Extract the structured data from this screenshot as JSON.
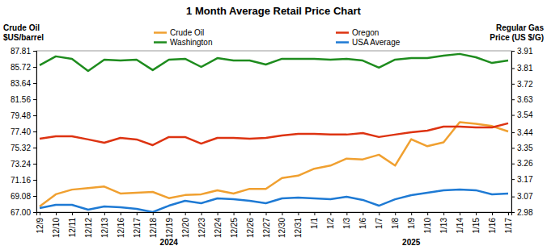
{
  "chart_data": {
    "type": "line",
    "title": "1 Month Average Retail Price Chart",
    "ylabel": [
      "Crude Oil",
      "$US/barrel"
    ],
    "y2label": [
      "Regular Gas",
      "Price (US $/G)"
    ],
    "categories": [
      "12/9",
      "12/10",
      "12/11",
      "12/12",
      "12/13",
      "12/16",
      "12/17",
      "12/18",
      "12/19",
      "12/20",
      "12/23",
      "12/24",
      "12/25",
      "12/26",
      "12/27",
      "12/30",
      "12/31",
      "1/1",
      "1/2",
      "1/3",
      "1/6",
      "1/7",
      "1/8",
      "1/9",
      "1/10",
      "1/13",
      "1/14",
      "1/15",
      "1/16",
      "1/17"
    ],
    "annotations": [
      {
        "text": "2024",
        "x": "12/19"
      },
      {
        "text": "2025",
        "x": "1/9"
      }
    ],
    "ylim": [
      67.0,
      87.81
    ],
    "yticks": [
      {
        "value": 67,
        "label": "67.00"
      },
      69.08,
      71.16,
      73.24,
      75.32,
      {
        "value": 77.4,
        "label": "77.40"
      },
      79.48,
      81.56,
      83.64,
      85.72,
      87.81
    ],
    "y2lim": [
      2.98,
      3.91
    ],
    "y2ticks": [
      2.98,
      3.07,
      3.17,
      3.26,
      3.35,
      3.44,
      3.54,
      3.63,
      3.72,
      3.81,
      3.91
    ],
    "grid": false,
    "legend": "top",
    "series": [
      {
        "name": "Crude Oil",
        "color": "#f0a030",
        "values": [
          67.73,
          69.3,
          69.9,
          70.1,
          70.3,
          69.4,
          69.5,
          69.6,
          68.8,
          69.2,
          69.3,
          69.8,
          69.4,
          70.0,
          70.0,
          71.4,
          71.7,
          72.6,
          73.0,
          73.9,
          73.8,
          74.4,
          73.0,
          76.4,
          75.5,
          76.0,
          78.6,
          78.4,
          78.1,
          77.4
        ]
      },
      {
        "name": "Washington",
        "color": "#1e8c1e",
        "axis": "y2",
        "values": [
          3.827,
          3.878,
          3.864,
          3.794,
          3.859,
          3.854,
          3.859,
          3.799,
          3.859,
          3.864,
          3.817,
          3.868,
          3.854,
          3.854,
          3.831,
          3.864,
          3.864,
          3.864,
          3.859,
          3.864,
          3.854,
          3.813,
          3.859,
          3.868,
          3.868,
          3.882,
          3.892,
          3.873,
          3.84,
          3.854
        ]
      },
      {
        "name": "Oregon",
        "color": "#dd3311",
        "axis": "y2",
        "values": [
          3.403,
          3.417,
          3.417,
          3.399,
          3.38,
          3.408,
          3.399,
          3.366,
          3.413,
          3.413,
          3.375,
          3.408,
          3.408,
          3.403,
          3.408,
          3.422,
          3.431,
          3.431,
          3.427,
          3.427,
          3.436,
          3.413,
          3.427,
          3.44,
          3.45,
          3.473,
          3.473,
          3.468,
          3.468,
          3.492
        ]
      },
      {
        "name": "USA Average",
        "color": "#1e7ad4",
        "axis": "y2",
        "values": [
          3.003,
          3.022,
          3.022,
          2.994,
          3.013,
          3.008,
          2.999,
          2.98,
          3.017,
          3.045,
          3.031,
          3.059,
          3.054,
          3.045,
          3.031,
          3.059,
          3.064,
          3.059,
          3.054,
          3.068,
          3.05,
          3.017,
          3.054,
          3.078,
          3.092,
          3.106,
          3.11,
          3.106,
          3.082,
          3.087
        ]
      }
    ]
  }
}
